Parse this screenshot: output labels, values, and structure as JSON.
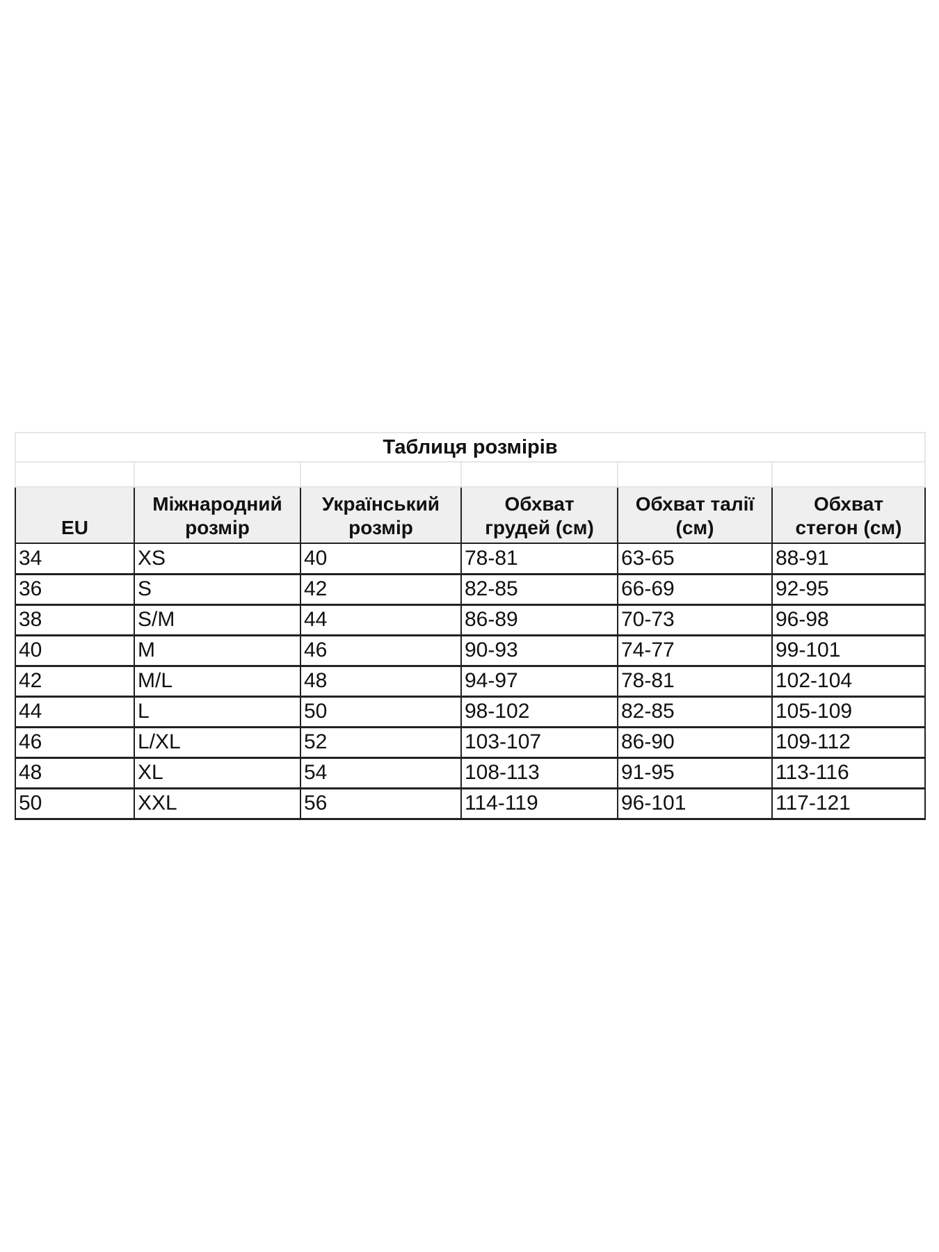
{
  "title": "Таблиця розмірів",
  "headers": [
    "EU",
    "Міжнародний розмір",
    "Український розмір",
    "Обхват грудей (см)",
    "Обхват талії (см)",
    "Обхват стегон (см)"
  ],
  "header_lines": [
    [
      "EU"
    ],
    [
      "Міжнародний",
      "розмір"
    ],
    [
      "Український",
      "розмір"
    ],
    [
      "Обхват",
      "грудей (см)"
    ],
    [
      "Обхват талії",
      "(см)"
    ],
    [
      "Обхват",
      "стегон (см)"
    ]
  ],
  "rows": [
    [
      "34",
      "XS",
      "40",
      "78-81",
      "63-65",
      "88-91"
    ],
    [
      "36",
      "S",
      "42",
      "82-85",
      "66-69",
      "92-95"
    ],
    [
      "38",
      "S/M",
      "44",
      "86-89",
      "70-73",
      "96-98"
    ],
    [
      "40",
      "M",
      "46",
      "90-93",
      "74-77",
      "99-101"
    ],
    [
      "42",
      "M/L",
      "48",
      "94-97",
      "78-81",
      "102-104"
    ],
    [
      "44",
      "L",
      "50",
      "98-102",
      "82-85",
      "105-109"
    ],
    [
      "46",
      "L/XL",
      "52",
      "103-107",
      "86-90",
      "109-112"
    ],
    [
      "48",
      "XL",
      "54",
      "108-113",
      "91-95",
      "113-116"
    ],
    [
      "50",
      "XXL",
      "56",
      "114-119",
      "96-101",
      "117-121"
    ]
  ],
  "colors": {
    "header_bg": "#efefef",
    "border": "#222222",
    "light_border": "#e6e6e6"
  }
}
